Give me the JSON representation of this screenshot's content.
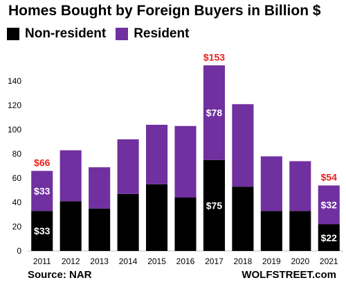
{
  "chart_data": {
    "type": "bar",
    "stacked": true,
    "title": "Homes Bought by Foreign Buyers in Billion $",
    "categories": [
      "2011",
      "2012",
      "2013",
      "2014",
      "2015",
      "2016",
      "2017",
      "2018",
      "2019",
      "2020",
      "2021"
    ],
    "series": [
      {
        "name": "Non-resident",
        "color": "#000000",
        "values": [
          33,
          41,
          35,
          47,
          55,
          44,
          75,
          53,
          33,
          33,
          22
        ]
      },
      {
        "name": "Resident",
        "color": "#7030A0",
        "values": [
          33,
          42,
          34,
          45,
          49,
          59,
          78,
          68,
          45,
          41,
          32
        ]
      }
    ],
    "segment_labels": [
      {
        "year": "2011",
        "series": "Non-resident",
        "text": "$33"
      },
      {
        "year": "2011",
        "series": "Resident",
        "text": "$33"
      },
      {
        "year": "2017",
        "series": "Non-resident",
        "text": "$75"
      },
      {
        "year": "2017",
        "series": "Resident",
        "text": "$78"
      },
      {
        "year": "2021",
        "series": "Non-resident",
        "text": "$22"
      },
      {
        "year": "2021",
        "series": "Resident",
        "text": "$32"
      }
    ],
    "total_labels": [
      {
        "year": "2011",
        "text": "$66",
        "color": "#E8201A"
      },
      {
        "year": "2017",
        "text": "$153",
        "color": "#E8201A"
      },
      {
        "year": "2021",
        "text": "$54",
        "color": "#E8201A"
      }
    ],
    "ylim": [
      0,
      160
    ],
    "yticks": [
      0,
      20,
      40,
      60,
      80,
      100,
      120,
      140
    ],
    "legend_position": "top-left",
    "grid": false
  },
  "source": "Source: NAR",
  "credit": "WOLFSTREET.com"
}
